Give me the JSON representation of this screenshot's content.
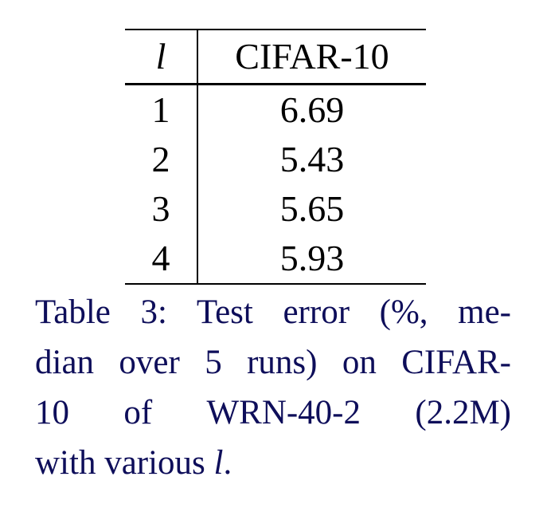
{
  "table": {
    "headers": [
      "l",
      "CIFAR-10"
    ],
    "rows": [
      {
        "l": "1",
        "value": "6.69"
      },
      {
        "l": "2",
        "value": "5.43"
      },
      {
        "l": "3",
        "value": "5.65"
      },
      {
        "l": "4",
        "value": "5.93"
      }
    ]
  },
  "caption": {
    "label": "Table 3:",
    "line1": "Test error (%, me-",
    "line2": "dian over 5 runs) on CIFAR-",
    "line3_words": [
      "10",
      "of",
      "WRN-40-2",
      "(2.2M)"
    ],
    "line4_prefix": "with various ",
    "line4_var": "l",
    "line4_suffix": "."
  }
}
